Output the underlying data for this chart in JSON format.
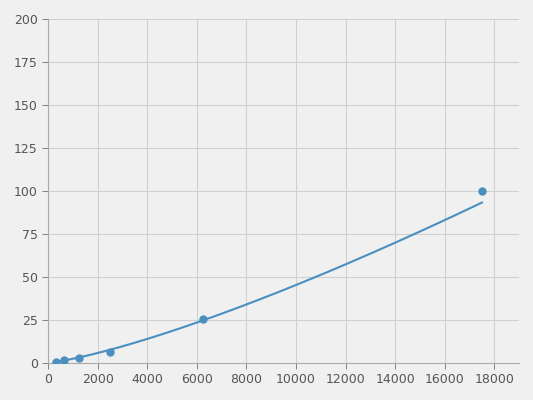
{
  "x": [
    312.5,
    625,
    1250,
    2500,
    6250,
    17500
  ],
  "y": [
    0.5,
    1.5,
    3.0,
    6.0,
    25.5,
    100.0
  ],
  "line_color": "#4a8fc0",
  "marker_color": "#4a8fc0",
  "marker_size": 5,
  "line_width": 1.5,
  "xlim": [
    0,
    19000
  ],
  "ylim": [
    0,
    200
  ],
  "xticks": [
    0,
    2000,
    4000,
    6000,
    8000,
    10000,
    12000,
    14000,
    16000,
    18000
  ],
  "yticks": [
    0,
    25,
    50,
    75,
    100,
    125,
    150,
    175,
    200
  ],
  "grid_color": "#d0d0d0",
  "background_color": "#f0f0f0",
  "tick_fontsize": 9
}
